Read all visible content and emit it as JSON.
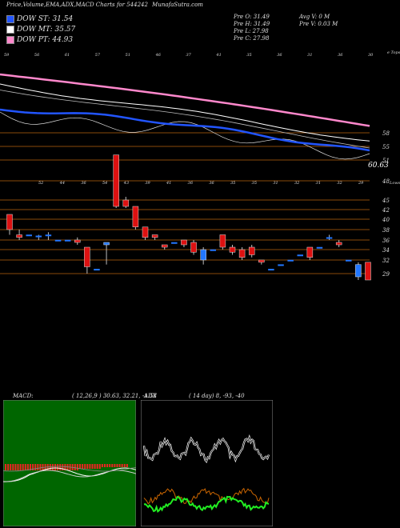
{
  "header": {
    "title": "Price,Volume,EMA,ADX,MACD Charts for 544242",
    "site": "MunafaSutra.com"
  },
  "legend": [
    {
      "label": "DOW ST: 31.54",
      "color": "#2255ff"
    },
    {
      "label": "DOW MT: 35.57",
      "color": "#ffffff"
    },
    {
      "label": "DOW PT: 44.93",
      "color": "#ff88cc"
    }
  ],
  "stats": {
    "prev_o": "Pre   O: 31.49",
    "prev_h": "Pre   H: 31.49",
    "prev_l": "Pre   L: 27.98",
    "prev_c": "Pre   C: 27.98",
    "avg_v": "Avg V: 0   M",
    "pre_v": "Pre   V: 0.03 M"
  },
  "colors": {
    "up": "#2277ff",
    "down": "#dd1111",
    "st": "#2255ff",
    "mt": "#ffffff",
    "pt": "#ff88cc",
    "price_line": "#cc6600",
    "macd_bar": "#ee2222",
    "adx_main": "#ffffff",
    "adx_pos": "#22ee22",
    "adx_neg": "#cc6600",
    "panel_bg": "#006600",
    "panel_bg2": "#000000"
  },
  "price_axis": {
    "ticks": [
      "58",
      "55",
      "51",
      "48",
      "45",
      "42",
      "40",
      "38",
      "36",
      "34",
      "32",
      "29"
    ],
    "current_label": "60.63",
    "top_right_label": "e Tops",
    "lows_label": "Lows"
  },
  "top_labels": [
    "59",
    "56",
    "61",
    "57",
    "51",
    "46",
    "37",
    "41",
    "35",
    "36",
    "31",
    "36",
    "30"
  ],
  "bottom_labels": [
    "52",
    "44",
    "36",
    "54",
    "43",
    "39",
    "41",
    "36",
    "36",
    "35",
    "35",
    "31",
    "32",
    "31",
    "32",
    "29"
  ],
  "macd": {
    "title": "MACD:",
    "params": "( 12,26,9 ) 30.63, 32.21, -1.58"
  },
  "adx": {
    "title": "ADX",
    "params": "( 14  day) 8, -93, -40"
  },
  "chart_data": {
    "type": "candlestick",
    "candles": [
      {
        "o": 41,
        "c": 38,
        "h": 41,
        "l": 37
      },
      {
        "o": 37,
        "c": 36.5,
        "h": 38,
        "l": 36
      },
      {
        "o": 37,
        "c": 37,
        "h": 37,
        "l": 37
      },
      {
        "o": 36.8,
        "c": 36.8,
        "h": 37,
        "l": 36
      },
      {
        "o": 37,
        "c": 37,
        "h": 37.5,
        "l": 36
      },
      {
        "o": 36,
        "c": 36,
        "h": 36,
        "l": 36
      },
      {
        "o": 36,
        "c": 36,
        "h": 36,
        "l": 36
      },
      {
        "o": 36,
        "c": 35.5,
        "h": 36.5,
        "l": 35
      },
      {
        "o": 34.5,
        "c": 30.5,
        "h": 34.5,
        "l": 29
      },
      {
        "o": 30,
        "c": 30,
        "h": 30,
        "l": 30
      },
      {
        "o": 35,
        "c": 35.5,
        "h": 35.5,
        "l": 31
      },
      {
        "o": 52.5,
        "c": 43,
        "h": 52.5,
        "l": 42.5
      },
      {
        "o": 45,
        "c": 43,
        "h": 45.5,
        "l": 42.5
      },
      {
        "o": 43,
        "c": 38.5,
        "h": 43,
        "l": 38
      },
      {
        "o": 38.5,
        "c": 36.5,
        "h": 38.5,
        "l": 36
      },
      {
        "o": 37,
        "c": 36.5,
        "h": 37,
        "l": 36
      },
      {
        "o": 35,
        "c": 34.5,
        "h": 35,
        "l": 34
      },
      {
        "o": 35.5,
        "c": 35.5,
        "h": 35.5,
        "l": 35.5
      },
      {
        "o": 36,
        "c": 35,
        "h": 36,
        "l": 34.5
      },
      {
        "o": 35.5,
        "c": 33.5,
        "h": 36,
        "l": 33
      },
      {
        "o": 32,
        "c": 34,
        "h": 34.5,
        "l": 31
      },
      {
        "o": 34,
        "c": 34,
        "h": 34,
        "l": 34
      },
      {
        "o": 37,
        "c": 34.5,
        "h": 37,
        "l": 34
      },
      {
        "o": 34.5,
        "c": 33.5,
        "h": 35,
        "l": 33
      },
      {
        "o": 34,
        "c": 32.5,
        "h": 34.5,
        "l": 32
      },
      {
        "o": 34.5,
        "c": 33,
        "h": 35,
        "l": 32.5
      },
      {
        "o": 32,
        "c": 31.5,
        "h": 32,
        "l": 31
      },
      {
        "o": 30,
        "c": 30,
        "h": 30,
        "l": 30
      },
      {
        "o": 31,
        "c": 31,
        "h": 31,
        "l": 31
      },
      {
        "o": 32,
        "c": 32,
        "h": 32,
        "l": 32
      },
      {
        "o": 33,
        "c": 33,
        "h": 33,
        "l": 33
      },
      {
        "o": 34.5,
        "c": 32.5,
        "h": 34.5,
        "l": 32
      },
      {
        "o": 34.5,
        "c": 34.5,
        "h": 34.5,
        "l": 34.5
      },
      {
        "o": 36.5,
        "c": 36.5,
        "h": 37,
        "l": 36
      },
      {
        "o": 35.5,
        "c": 35,
        "h": 36,
        "l": 34.5
      },
      {
        "o": 32,
        "c": 32,
        "h": 32,
        "l": 32
      },
      {
        "o": 28.5,
        "c": 31,
        "h": 31.5,
        "l": 28
      },
      {
        "o": 31.5,
        "c": 28,
        "h": 31.5,
        "l": 28
      }
    ],
    "ylim": [
      28,
      62
    ]
  }
}
